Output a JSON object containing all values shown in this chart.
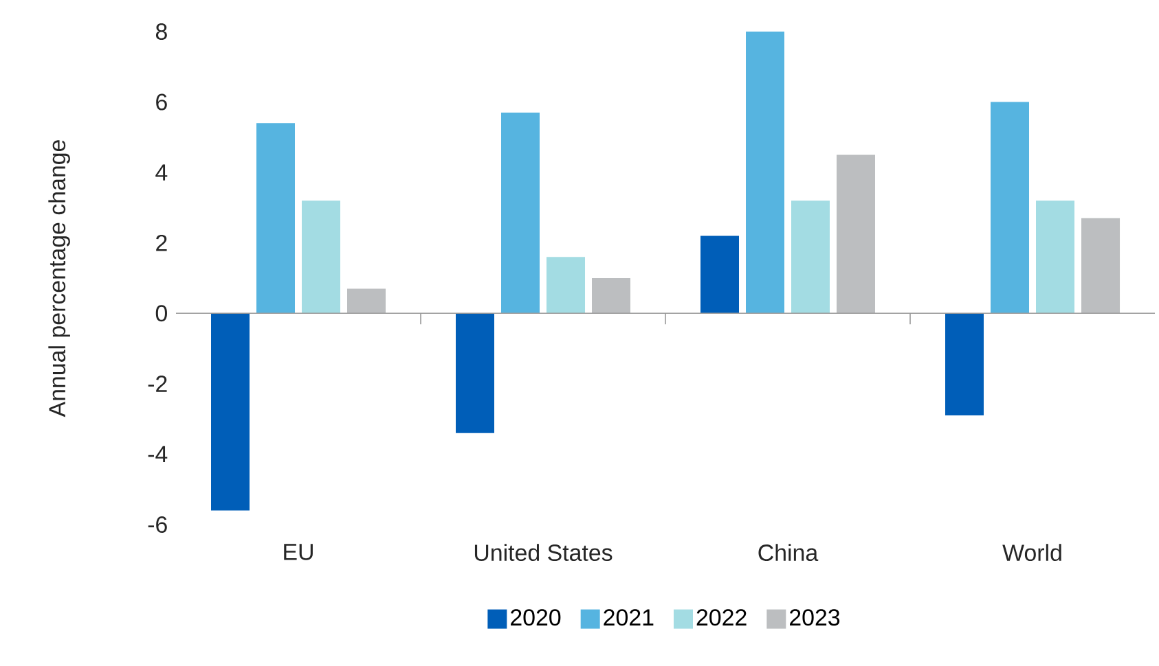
{
  "chart_data": {
    "type": "bar",
    "ylabel": "Annual percentage change",
    "categories": [
      "EU",
      "United States",
      "China",
      "World"
    ],
    "series": [
      {
        "name": "2020",
        "color": "#005eb8",
        "values": [
          -5.6,
          -3.4,
          2.2,
          -2.9
        ]
      },
      {
        "name": "2021",
        "color": "#56b4e0",
        "values": [
          5.4,
          5.7,
          8.0,
          6.0
        ]
      },
      {
        "name": "2022",
        "color": "#a3dce3",
        "values": [
          3.2,
          1.6,
          3.2,
          3.2
        ]
      },
      {
        "name": "2023",
        "color": "#bcbec0",
        "values": [
          0.7,
          1.0,
          4.5,
          2.7
        ]
      }
    ],
    "ylim": [
      -6,
      8
    ],
    "yticks": [
      -6,
      -4,
      -2,
      0,
      2,
      4,
      6,
      8
    ],
    "legend": "bottom"
  }
}
